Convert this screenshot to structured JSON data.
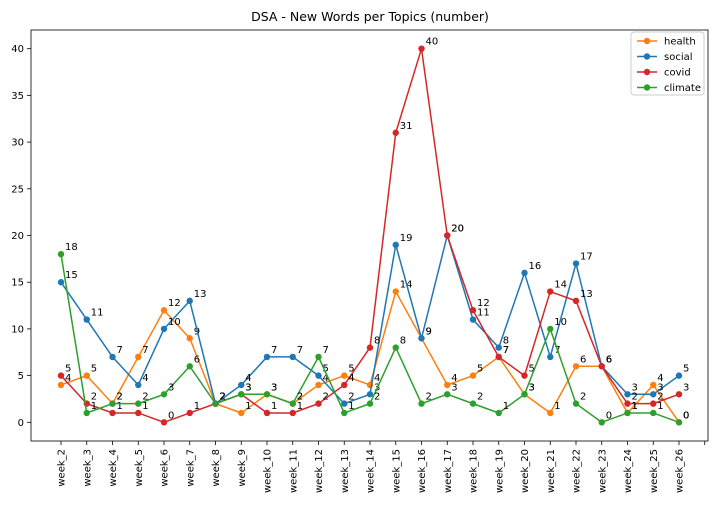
{
  "chart_data": {
    "type": "line",
    "title": "DSA - New Words per Topics (number)",
    "xlabel": "",
    "ylabel": "",
    "ylim": [
      -2,
      42
    ],
    "y_ticks": [
      0,
      5,
      10,
      15,
      20,
      25,
      30,
      35,
      40
    ],
    "grid": false,
    "legend_position": "top-right",
    "categories": [
      "week_2",
      "week_3",
      "week_4",
      "week_5",
      "week_6",
      "week_7",
      "week_8",
      "week_9",
      "week_10",
      "week_11",
      "week_12",
      "week_13",
      "week_14",
      "week_15",
      "week_16",
      "week_17",
      "week_18",
      "week_19",
      "week_20",
      "week_21",
      "week_22",
      "week_23",
      "week_24",
      "week_25",
      "week_26"
    ],
    "series": [
      {
        "name": "health",
        "color": "#ff7f0e",
        "values": [
          4,
          5,
          2,
          7,
          12,
          9,
          2,
          1,
          3,
          2,
          4,
          5,
          4,
          14,
          9,
          4,
          5,
          7,
          3,
          1,
          6,
          6,
          1,
          4,
          0
        ]
      },
      {
        "name": "social",
        "color": "#1f77b4",
        "values": [
          15,
          11,
          7,
          4,
          10,
          13,
          2,
          4,
          7,
          7,
          5,
          2,
          3,
          19,
          9,
          20,
          11,
          8,
          16,
          7,
          17,
          6,
          3,
          3,
          5
        ]
      },
      {
        "name": "covid",
        "color": "#d62728",
        "values": [
          5,
          2,
          1,
          1,
          0,
          1,
          2,
          3,
          1,
          1,
          2,
          4,
          8,
          31,
          40,
          20,
          12,
          7,
          5,
          14,
          13,
          6,
          2,
          2,
          3
        ]
      },
      {
        "name": "climate",
        "color": "#2ca02c",
        "values": [
          18,
          1,
          2,
          2,
          3,
          6,
          2,
          3,
          3,
          2,
          7,
          1,
          2,
          8,
          2,
          3,
          2,
          1,
          3,
          10,
          2,
          0,
          1,
          1,
          0
        ]
      }
    ]
  }
}
